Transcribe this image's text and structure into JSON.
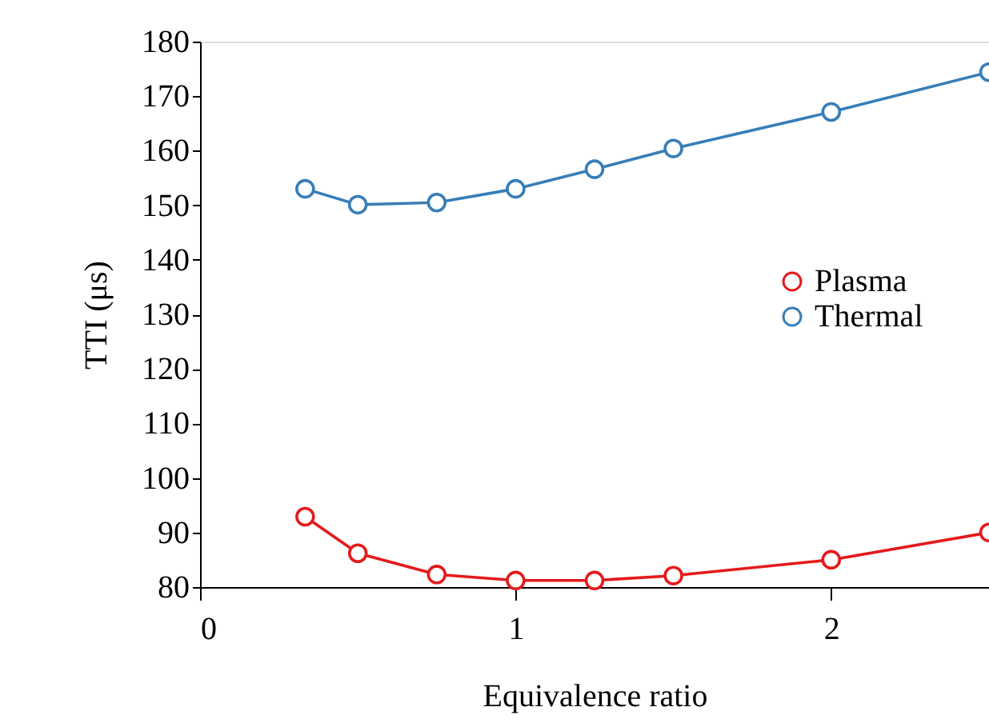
{
  "chart_data": {
    "type": "line",
    "xlabel": "Equivalence ratio",
    "ylabel": "TTI (μs)",
    "x": [
      0.333,
      0.5,
      0.75,
      1,
      1.25,
      1.5,
      2,
      2.5
    ],
    "series": [
      {
        "name": "Plasma",
        "color": "#e41a1c",
        "values": [
          92.9,
          86.2,
          82.3,
          81.2,
          81.2,
          82.1,
          85.0,
          90.0
        ]
      },
      {
        "name": "Thermal",
        "color": "#377eb8",
        "values": [
          153.0,
          150.1,
          150.5,
          153.0,
          156.6,
          160.4,
          167.1,
          174.4
        ]
      }
    ],
    "xlim": [
      0,
      2.5
    ],
    "xticks": [
      0,
      1,
      2
    ],
    "ylim": [
      80,
      180
    ],
    "yticks": [
      80,
      90,
      100,
      110,
      120,
      130,
      140,
      150,
      160,
      170,
      180
    ],
    "marker": "circle",
    "line_style": "solid",
    "grid": false,
    "legend": "right"
  }
}
